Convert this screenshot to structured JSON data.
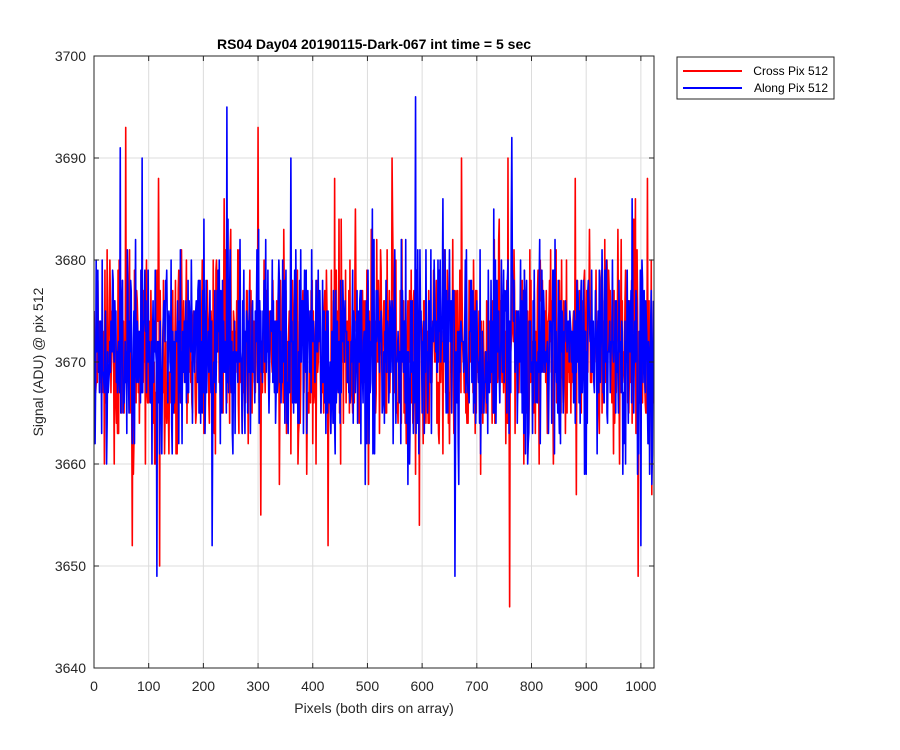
{
  "chart_data": {
    "type": "line",
    "title": "RS04 Day04 20190115-Dark-067 int time = 5 sec",
    "xlabel": "Pixels (both dirs on array)",
    "ylabel": "Signal (ADU) @ pix 512",
    "xlim": [
      0,
      1024
    ],
    "ylim": [
      3640,
      3700
    ],
    "xticks": [
      0,
      100,
      200,
      300,
      400,
      500,
      600,
      700,
      800,
      900,
      1000
    ],
    "yticks": [
      3640,
      3650,
      3660,
      3670,
      3680,
      3690,
      3700
    ],
    "grid": true,
    "legend_position": "outside-top-right",
    "series": [
      {
        "name": "Cross Pix 512",
        "color": "#ff0000",
        "n_points": 1024,
        "mean": 3671,
        "spread": 5,
        "extremes": [
          {
            "x": 58,
            "y": 3693
          },
          {
            "x": 70,
            "y": 3652
          },
          {
            "x": 118,
            "y": 3688
          },
          {
            "x": 120,
            "y": 3650
          },
          {
            "x": 238,
            "y": 3686
          },
          {
            "x": 300,
            "y": 3693
          },
          {
            "x": 305,
            "y": 3655
          },
          {
            "x": 428,
            "y": 3652
          },
          {
            "x": 440,
            "y": 3688
          },
          {
            "x": 545,
            "y": 3690
          },
          {
            "x": 595,
            "y": 3654
          },
          {
            "x": 672,
            "y": 3690
          },
          {
            "x": 757,
            "y": 3690
          },
          {
            "x": 760,
            "y": 3646
          },
          {
            "x": 880,
            "y": 3688
          },
          {
            "x": 990,
            "y": 3686
          },
          {
            "x": 995,
            "y": 3649
          },
          {
            "x": 1012,
            "y": 3688
          },
          {
            "x": 1020,
            "y": 3657
          }
        ]
      },
      {
        "name": "Along Pix 512",
        "color": "#0000ff",
        "n_points": 1024,
        "mean": 3671,
        "spread": 5,
        "extremes": [
          {
            "x": 48,
            "y": 3691
          },
          {
            "x": 88,
            "y": 3690
          },
          {
            "x": 115,
            "y": 3649
          },
          {
            "x": 243,
            "y": 3695
          },
          {
            "x": 216,
            "y": 3652
          },
          {
            "x": 360,
            "y": 3690
          },
          {
            "x": 588,
            "y": 3696
          },
          {
            "x": 660,
            "y": 3649
          },
          {
            "x": 764,
            "y": 3692
          },
          {
            "x": 984,
            "y": 3686
          },
          {
            "x": 1000,
            "y": 3652
          }
        ]
      }
    ]
  }
}
